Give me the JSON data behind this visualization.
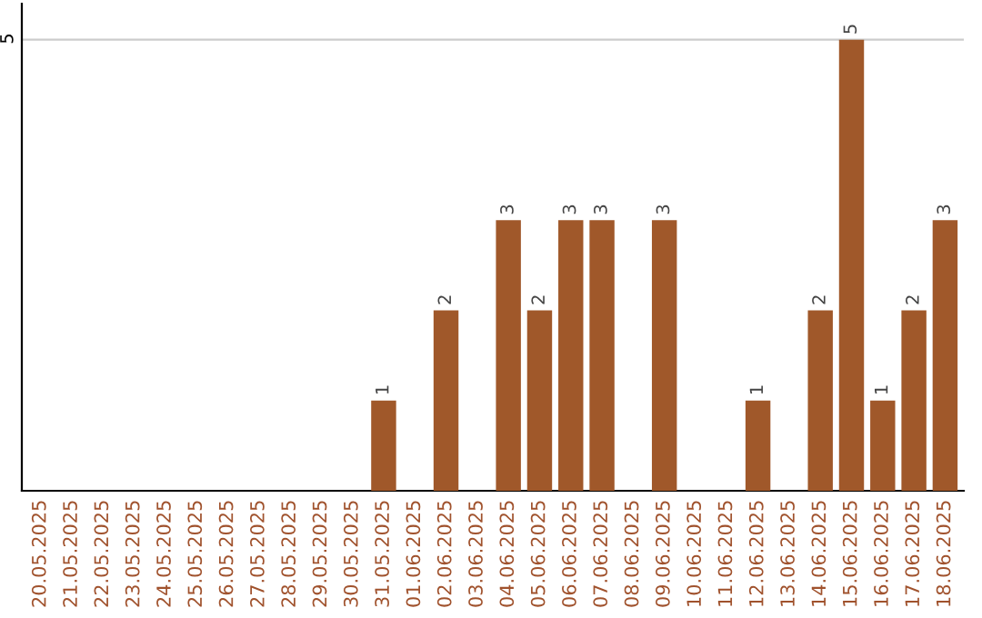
{
  "chart_data": {
    "type": "bar",
    "categories": [
      "20.05.2025",
      "21.05.2025",
      "22.05.2025",
      "23.05.2025",
      "24.05.2025",
      "25.05.2025",
      "26.05.2025",
      "27.05.2025",
      "28.05.2025",
      "29.05.2025",
      "30.05.2025",
      "31.05.2025",
      "01.06.2025",
      "02.06.2025",
      "03.06.2025",
      "04.06.2025",
      "05.06.2025",
      "06.06.2025",
      "07.06.2025",
      "08.06.2025",
      "09.06.2025",
      "10.06.2025",
      "11.06.2025",
      "12.06.2025",
      "13.06.2025",
      "14.06.2025",
      "15.06.2025",
      "16.06.2025",
      "17.06.2025",
      "18.06.2025"
    ],
    "values": [
      0,
      0,
      0,
      0,
      0,
      0,
      0,
      0,
      0,
      0,
      0,
      1,
      0,
      2,
      0,
      3,
      2,
      3,
      3,
      0,
      3,
      0,
      0,
      1,
      0,
      2,
      5,
      1,
      2,
      3
    ],
    "value_labels": [
      null,
      null,
      null,
      null,
      null,
      null,
      null,
      null,
      null,
      null,
      null,
      "1",
      null,
      "2",
      null,
      "3",
      "2",
      "3",
      "3",
      null,
      "3",
      null,
      null,
      "1",
      null,
      "2",
      "5",
      "1",
      "2",
      "3"
    ],
    "color": "#a0582a",
    "ylim": [
      0,
      5.4
    ],
    "yticks": [
      5
    ],
    "grid": "y"
  }
}
